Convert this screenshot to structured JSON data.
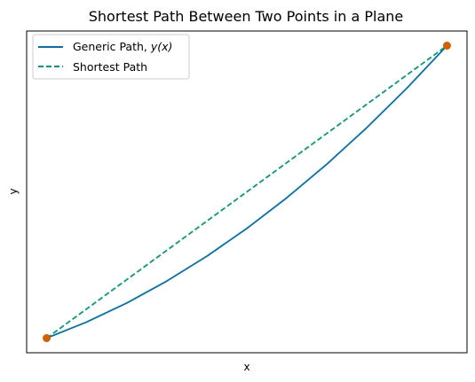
{
  "chart_data": {
    "type": "line",
    "title": "Shortest Path Between Two Points in a Plane",
    "xlabel": "x",
    "ylabel": "y",
    "ticks_visible": false,
    "grid": false,
    "legend_position": "top-left",
    "xlim": [
      -0.05,
      1.05
    ],
    "ylim": [
      -0.05,
      1.05
    ],
    "series": [
      {
        "name": "Generic Path, y(x)",
        "name_math": "y(x)",
        "name_prefix": "Generic Path, ",
        "style": "solid",
        "color": "#0072B2",
        "x": [
          0,
          0.1,
          0.2,
          0.3,
          0.4,
          0.5,
          0.6,
          0.7,
          0.8,
          0.9,
          1.0
        ],
        "y": [
          0,
          0.055,
          0.12,
          0.195,
          0.28,
          0.375,
          0.48,
          0.595,
          0.72,
          0.855,
          1.0
        ]
      },
      {
        "name": "Shortest Path",
        "style": "dashed",
        "color": "#009E73",
        "x": [
          0,
          1
        ],
        "y": [
          0,
          1
        ]
      }
    ],
    "endpoints": {
      "color": "#D55E00",
      "x": [
        0,
        1
      ],
      "y": [
        0,
        1
      ]
    }
  }
}
